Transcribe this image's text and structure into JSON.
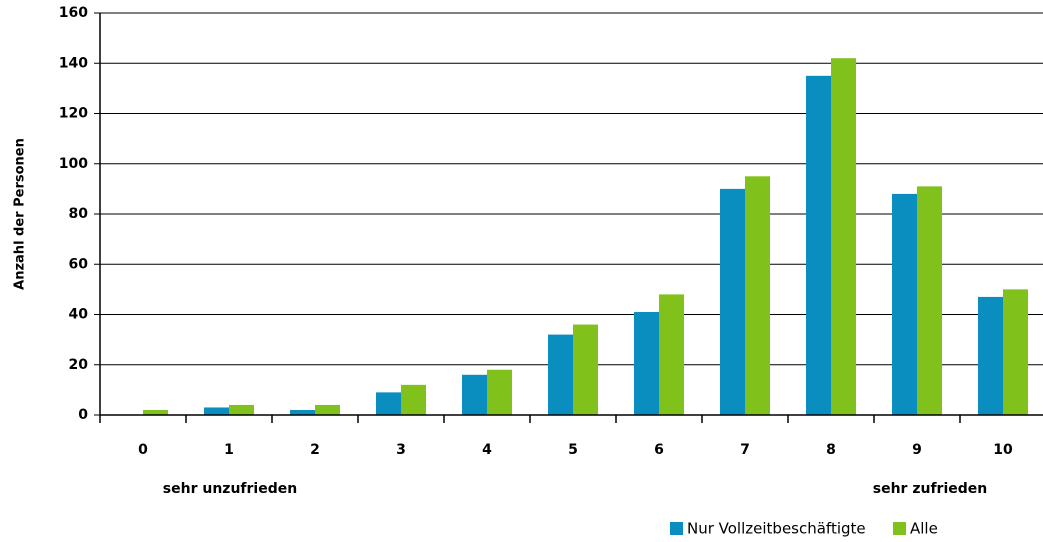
{
  "chart_data": {
    "type": "bar",
    "y_label": "Anzahl der Personen",
    "categories": [
      "0",
      "1",
      "2",
      "3",
      "4",
      "5",
      "6",
      "7",
      "8",
      "9",
      "10"
    ],
    "series": [
      {
        "name": "Nur Vollzeitbeschäftigte",
        "color": "#0a8dbf",
        "values": [
          0,
          3,
          2,
          9,
          16,
          32,
          41,
          90,
          135,
          88,
          47
        ]
      },
      {
        "name": "Alle",
        "color": "#80c11c",
        "values": [
          2,
          4,
          4,
          12,
          18,
          36,
          48,
          95,
          142,
          91,
          50
        ]
      }
    ],
    "annotations": [
      "sehr unzufrieden",
      "sehr zufrieden"
    ],
    "ylim": [
      0,
      160
    ],
    "yticks": [
      0,
      20,
      40,
      60,
      80,
      100,
      120,
      140,
      160
    ],
    "grid": true
  }
}
